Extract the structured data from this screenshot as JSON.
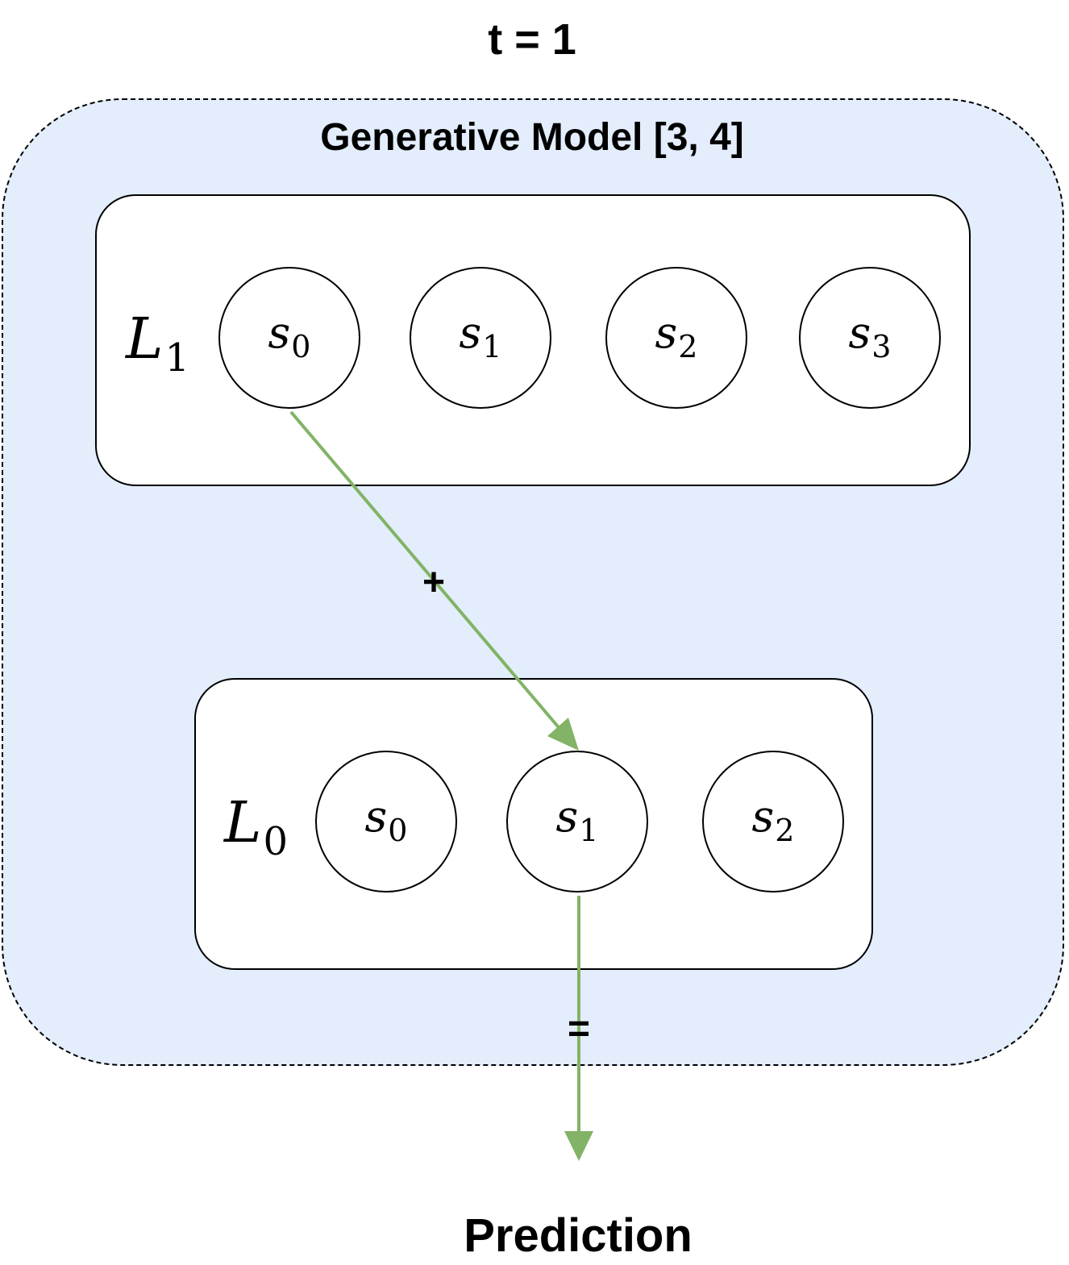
{
  "title": "t = 1",
  "model": {
    "title": "Generative Model [3, 4]"
  },
  "layers": {
    "upper": {
      "label": "L",
      "label_sub": "1",
      "nodes": [
        {
          "name": "s",
          "sub": "0"
        },
        {
          "name": "s",
          "sub": "1"
        },
        {
          "name": "s",
          "sub": "2"
        },
        {
          "name": "s",
          "sub": "3"
        }
      ]
    },
    "lower": {
      "label": "L",
      "label_sub": "0",
      "nodes": [
        {
          "name": "s",
          "sub": "0"
        },
        {
          "name": "s",
          "sub": "1"
        },
        {
          "name": "s",
          "sub": "2"
        }
      ]
    }
  },
  "edges": {
    "plus_label": "+",
    "equals_label": "=",
    "color": "#82b366"
  },
  "output": {
    "label": "Prediction"
  }
}
